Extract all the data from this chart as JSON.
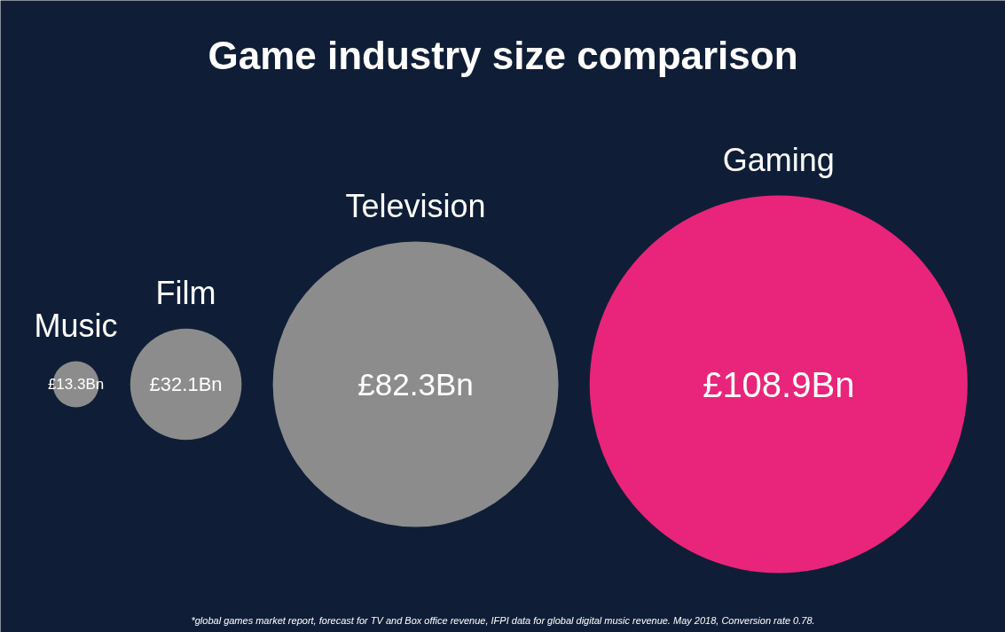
{
  "chart_data": {
    "type": "other",
    "title": "Game industry size comparison",
    "categories": [
      "Music",
      "Film",
      "Television",
      "Gaming"
    ],
    "values": [
      13.3,
      32.1,
      82.3,
      108.9
    ],
    "value_labels": [
      "£13.3Bn",
      "£32.1Bn",
      "£82.3Bn",
      "£108.9Bn"
    ],
    "colors": [
      "#8c8c8c",
      "#8c8c8c",
      "#8c8c8c",
      "#e8257a"
    ],
    "annotations": [
      "*global games market report, forecast for TV and Box office revenue, IFPI data for global digital music revenue. May 2018, Conversion rate 0.78."
    ]
  }
}
